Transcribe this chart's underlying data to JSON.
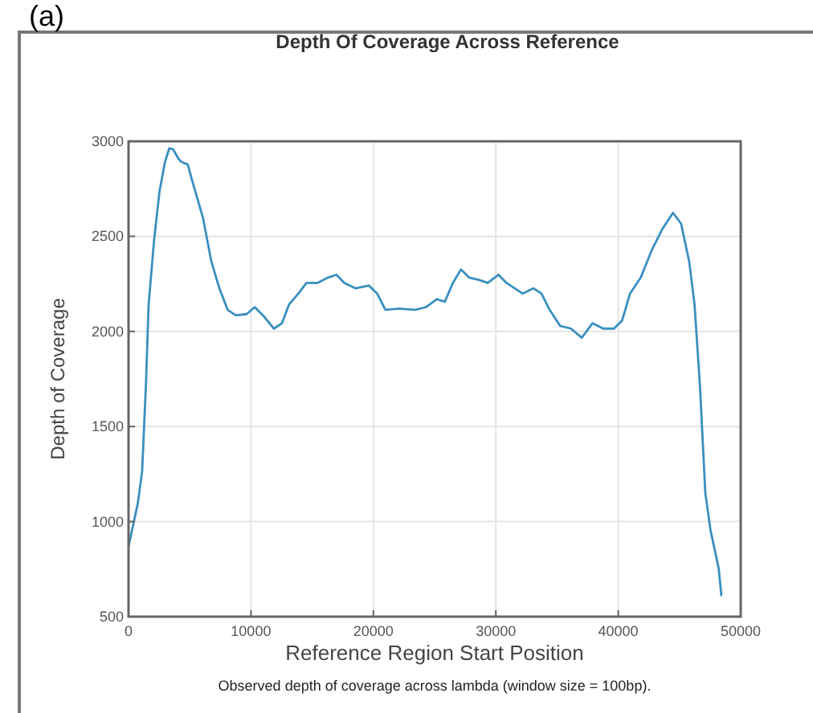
{
  "chart_data": {
    "type": "line",
    "title": "Depth Of Coverage Across Reference",
    "xlabel": "Reference Region Start Position",
    "ylabel": "Depth of Coverage",
    "annotations": [
      "(a)",
      "Observed depth of coverage across lambda (window size = 100bp)."
    ],
    "xlim": [
      0,
      50000
    ],
    "ylim": [
      500,
      3000
    ],
    "xticks": [
      0,
      10000,
      20000,
      30000,
      40000,
      50000
    ],
    "yticks": [
      500,
      1000,
      1500,
      2000,
      2500,
      3000
    ],
    "grid": true,
    "marker": "none",
    "line_style": "solid",
    "series": [
      {
        "color": "#3a8fc0",
        "x": [
          0,
          755,
          1110,
          1420,
          1640,
          2090,
          2530,
          2980,
          3330,
          3640,
          4090,
          4310,
          4840,
          5200,
          6090,
          6760,
          7420,
          8090,
          8760,
          9640,
          10310,
          10980,
          11870,
          12530,
          13110,
          13870,
          14530,
          15420,
          16310,
          16980,
          17640,
          18530,
          19640,
          20310,
          20980,
          22090,
          23420,
          24300,
          25180,
          25830,
          26490,
          27150,
          27810,
          28680,
          29340,
          30220,
          30880,
          31540,
          32190,
          33070,
          33730,
          34390,
          35260,
          36140,
          37020,
          37890,
          38770,
          39650,
          40310,
          40960,
          41840,
          42720,
          43600,
          44470,
          45130,
          45790,
          46230,
          46670,
          47110,
          47540,
          48200,
          48420
        ],
        "values": [
          870,
          1095,
          1265,
          1717,
          2142,
          2482,
          2737,
          2892,
          2963,
          2958,
          2907,
          2892,
          2878,
          2793,
          2595,
          2369,
          2227,
          2114,
          2085,
          2091,
          2128,
          2085,
          2015,
          2043,
          2142,
          2199,
          2255,
          2255,
          2284,
          2298,
          2255,
          2227,
          2241,
          2199,
          2114,
          2120,
          2114,
          2128,
          2170,
          2156,
          2255,
          2326,
          2284,
          2270,
          2255,
          2298,
          2255,
          2227,
          2199,
          2227,
          2199,
          2114,
          2029,
          2015,
          1967,
          2043,
          2015,
          2015,
          2057,
          2199,
          2284,
          2425,
          2539,
          2624,
          2567,
          2369,
          2142,
          1717,
          1151,
          953,
          755,
          613
        ]
      }
    ]
  }
}
